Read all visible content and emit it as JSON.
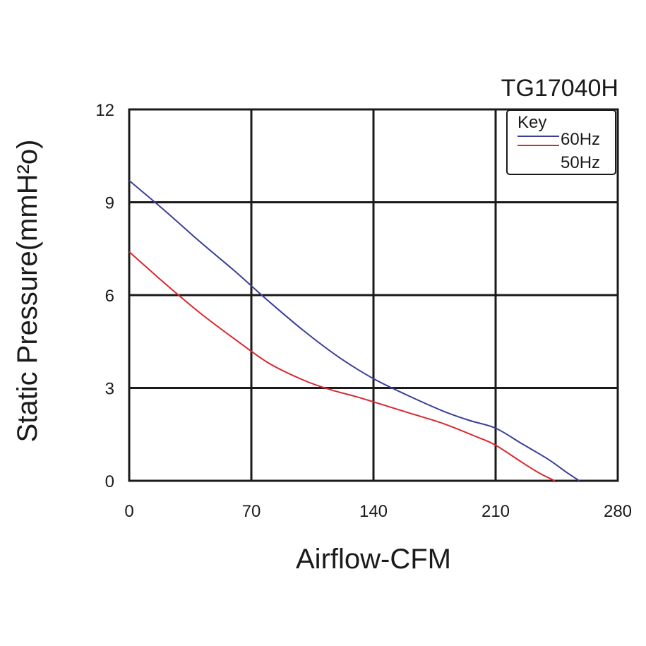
{
  "chart_data": {
    "type": "line",
    "title": "TG17040H",
    "xlabel": "Airflow-CFM",
    "ylabel": "Static Pressure(mmH²o)",
    "xlim": [
      0,
      280
    ],
    "ylim": [
      0,
      12
    ],
    "xticks": [
      0,
      70,
      140,
      210,
      280
    ],
    "yticks": [
      0,
      3,
      6,
      9,
      12
    ],
    "x_tick_labels": [
      "0",
      "70",
      "140",
      "210",
      "280"
    ],
    "y_tick_labels": [
      "0",
      "3",
      "6",
      "9",
      "12"
    ],
    "grid": true,
    "legend": {
      "title": "Key",
      "placement": "top-right",
      "entries": [
        "60Hz",
        "50Hz"
      ]
    },
    "series": [
      {
        "name": "60Hz",
        "color": "#3a3f96",
        "points": [
          [
            0,
            9.7
          ],
          [
            20,
            8.75
          ],
          [
            40,
            7.75
          ],
          [
            60,
            6.8
          ],
          [
            80,
            5.8
          ],
          [
            100,
            4.85
          ],
          [
            120,
            4.0
          ],
          [
            140,
            3.3
          ],
          [
            160,
            2.75
          ],
          [
            180,
            2.25
          ],
          [
            195,
            1.95
          ],
          [
            210,
            1.7
          ],
          [
            225,
            1.2
          ],
          [
            240,
            0.7
          ],
          [
            250,
            0.3
          ],
          [
            258,
            0.0
          ]
        ]
      },
      {
        "name": "50Hz",
        "color": "#d9282f",
        "points": [
          [
            0,
            7.4
          ],
          [
            20,
            6.4
          ],
          [
            40,
            5.45
          ],
          [
            60,
            4.6
          ],
          [
            80,
            3.8
          ],
          [
            100,
            3.25
          ],
          [
            115,
            2.95
          ],
          [
            130,
            2.72
          ],
          [
            140,
            2.55
          ],
          [
            160,
            2.2
          ],
          [
            180,
            1.85
          ],
          [
            200,
            1.4
          ],
          [
            210,
            1.15
          ],
          [
            225,
            0.6
          ],
          [
            235,
            0.25
          ],
          [
            244,
            0.0
          ]
        ]
      }
    ]
  }
}
